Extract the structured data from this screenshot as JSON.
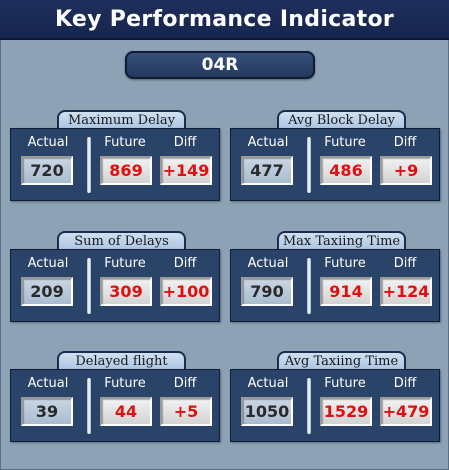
{
  "header": {
    "title": "Key Performance Indicator"
  },
  "runway": {
    "label": "04R"
  },
  "column_labels": {
    "actual": "Actual",
    "future": "Future",
    "diff": "Diff"
  },
  "kpis": [
    {
      "title": "Maximum Delay",
      "actual": "720",
      "future": "869",
      "diff": "+149"
    },
    {
      "title": "Avg Block Delay",
      "actual": "477",
      "future": "486",
      "diff": "+9"
    },
    {
      "title": "Sum of Delays",
      "actual": "209",
      "future": "309",
      "diff": "+100"
    },
    {
      "title": "Max Taxiing Time",
      "actual": "790",
      "future": "914",
      "diff": "+124"
    },
    {
      "title": "Delayed flight",
      "actual": "39",
      "future": "44",
      "diff": "+5"
    },
    {
      "title": "Avg Taxiing Time",
      "actual": "1050",
      "future": "1529",
      "diff": "+479"
    }
  ],
  "colors": {
    "header_bg": "#1f2f5c",
    "panel_bg": "#2a4368",
    "value_red": "#e01010",
    "page_bg": "#8da2b4"
  }
}
